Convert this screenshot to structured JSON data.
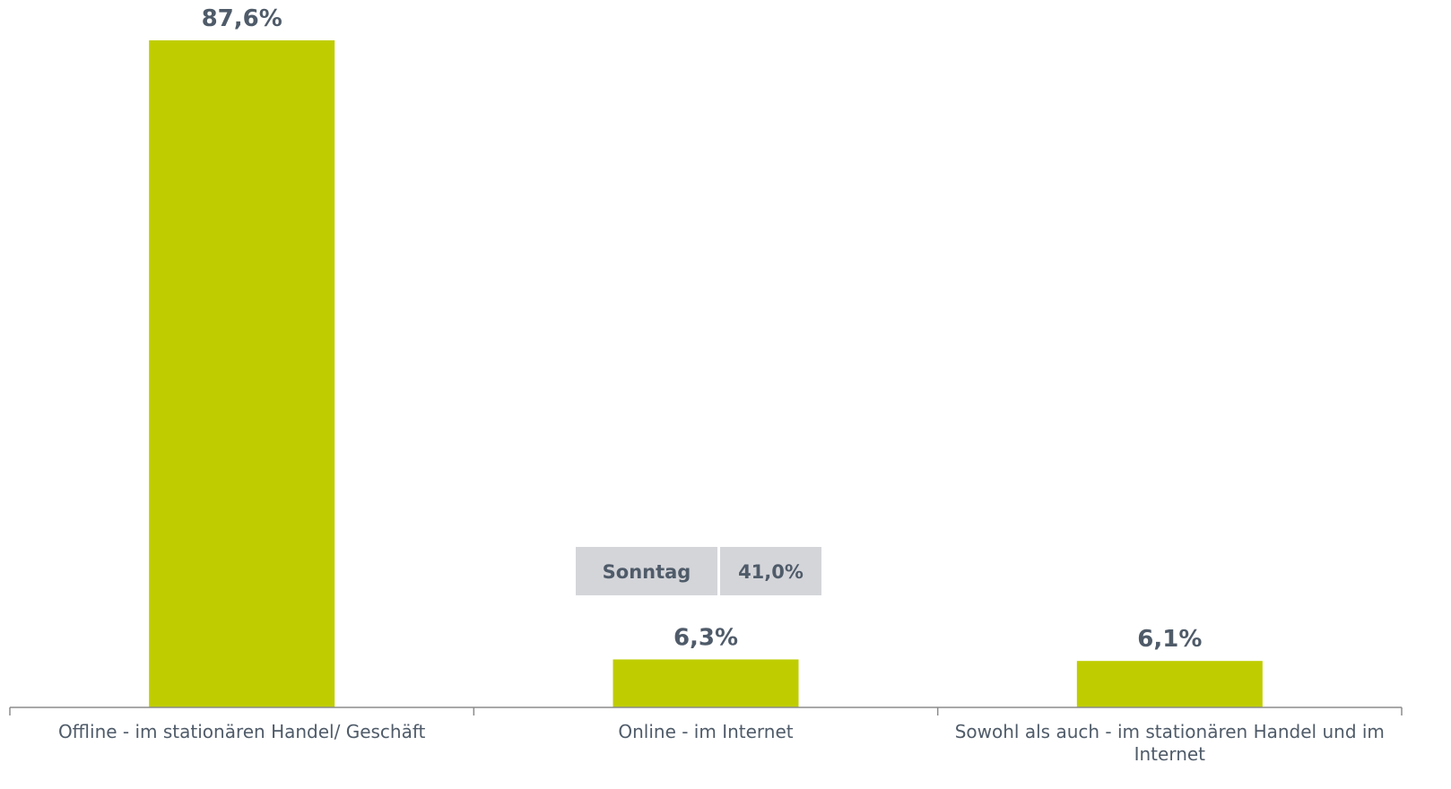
{
  "chart_data": {
    "type": "bar",
    "categories": [
      [
        "Offline - im stationären Handel/ Geschäft"
      ],
      [
        "Online - im Internet"
      ],
      [
        "Sowohl als auch - im stationären Handel und im",
        "Internet"
      ]
    ],
    "values": [
      87.6,
      6.3,
      6.1
    ],
    "value_labels": [
      "87,6%",
      "6,3%",
      "6,1%"
    ],
    "ylim": [
      0,
      100
    ],
    "grid": false,
    "legend": "none",
    "bar_color": "#bfcd00",
    "axis_color": "#8c8c8c",
    "text_color": "#4f5b69",
    "annotation": {
      "category_index": 1,
      "label": "Sonntag",
      "value": "41,0%",
      "color": "#d4d5d9"
    }
  }
}
